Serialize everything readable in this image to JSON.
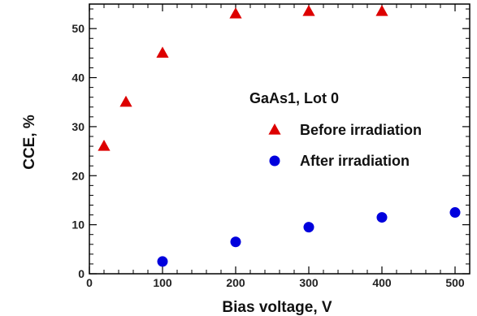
{
  "chart_data": {
    "type": "scatter",
    "xlabel": "Bias voltage, V",
    "ylabel": "CCE, %",
    "xlim": [
      0,
      520
    ],
    "ylim": [
      0,
      55
    ],
    "xticks": [
      0,
      100,
      200,
      300,
      400,
      500
    ],
    "yticks": [
      0,
      10,
      20,
      30,
      40,
      50
    ],
    "grid": false,
    "legend_title": "GaAs1, Lot 0",
    "legend_position": "right",
    "series": [
      {
        "name": "Before irradiation",
        "marker": "triangle",
        "color": "#dd0000",
        "points": [
          {
            "x": 20,
            "y": 26
          },
          {
            "x": 50,
            "y": 35
          },
          {
            "x": 100,
            "y": 45
          },
          {
            "x": 200,
            "y": 53
          },
          {
            "x": 300,
            "y": 53.5
          },
          {
            "x": 400,
            "y": 53.5
          }
        ]
      },
      {
        "name": "After irradiation",
        "marker": "circle",
        "color": "#0000dd",
        "points": [
          {
            "x": 100,
            "y": 2.5
          },
          {
            "x": 200,
            "y": 6.5
          },
          {
            "x": 300,
            "y": 9.5
          },
          {
            "x": 400,
            "y": 11.5
          },
          {
            "x": 500,
            "y": 12.5
          }
        ]
      }
    ]
  }
}
